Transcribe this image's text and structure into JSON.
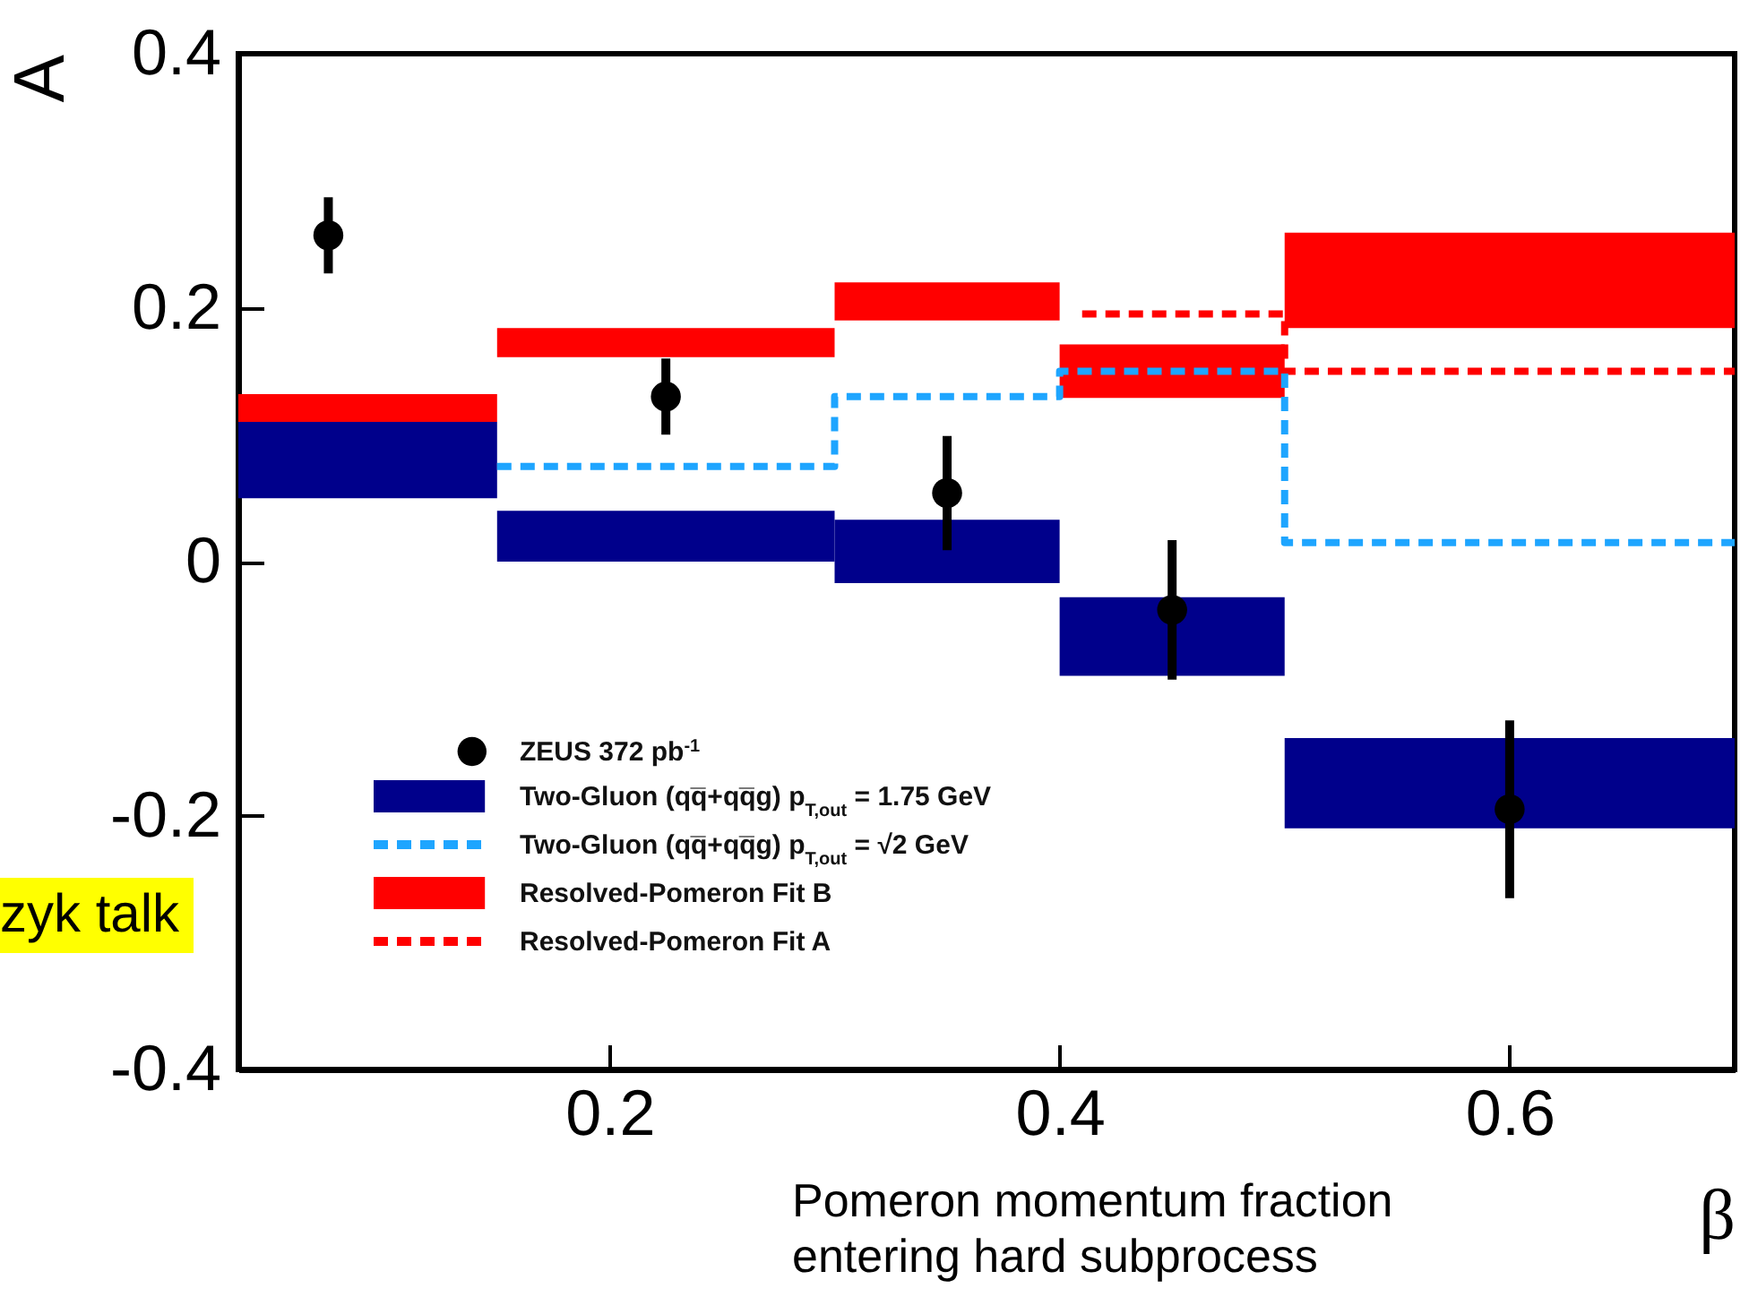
{
  "chart_data": {
    "type": "histogram",
    "xlabel": "β",
    "ylabel": "A",
    "xlim": [
      0.035,
      0.7
    ],
    "xticks": [
      0.2,
      0.4,
      0.6
    ],
    "ylim": [
      -0.4,
      0.4
    ],
    "yticks": [
      -0.4,
      -0.2,
      0,
      0.2,
      0.4
    ],
    "legend": "bottom left",
    "annotations": [
      "zyk talk",
      "Pomeron momentum fraction\nentering hard subprocess"
    ],
    "series": [
      {
        "name": "ZEUS 372 pb$^{-1}$",
        "type": "scatter",
        "color": "#000000",
        "marker": "circle",
        "x": [
          0.075,
          0.225,
          0.35,
          0.45,
          0.6
        ],
        "values": [
          0.257,
          0.13,
          0.054,
          -0.038,
          -0.195
        ],
        "errors": [
          0.03,
          0.03,
          0.045,
          0.055,
          0.07
        ]
      },
      {
        "name": "Two-Gluon (qq̅+qq̅g) p$_{T,out}$ = 1.75 GeV",
        "color": "#00008b",
        "bins": [
          0.035,
          0.15,
          0.3,
          0.4,
          0.5,
          0.7
        ],
        "base": [
          0.05,
          0.0,
          -0.017,
          -0.09,
          -0.21
        ],
        "values": [
          0.06,
          0.04,
          0.05,
          0.062,
          0.071
        ]
      },
      {
        "name": "Two-Gluon (qq̅+qq̅g) p$_{T,out}$ = √2 GeV",
        "type": "step",
        "color": "#1ea5ff",
        "line_style": "dashed",
        "x": [
          0.15,
          0.3,
          0.4,
          0.5,
          0.7
        ],
        "values": [
          0.075,
          0.13,
          0.15,
          0.015,
          0.015
        ]
      },
      {
        "name": "Resolved-Pomeron Fit B",
        "color": "#ff0000",
        "bins": [
          0.035,
          0.15,
          0.3,
          0.4,
          0.5,
          0.7
        ],
        "base": [
          0.11,
          0.161,
          0.19,
          0.129,
          0.184
        ],
        "values": [
          0.022,
          0.023,
          0.03,
          0.042,
          0.075
        ]
      },
      {
        "name": "Resolved-Pomeron Fit A",
        "type": "step",
        "color": "#ff0000",
        "line_style": "dashed",
        "x": [
          0.41,
          0.5,
          0.7
        ],
        "values": [
          0.195,
          0.15,
          0.15
        ]
      }
    ]
  }
}
